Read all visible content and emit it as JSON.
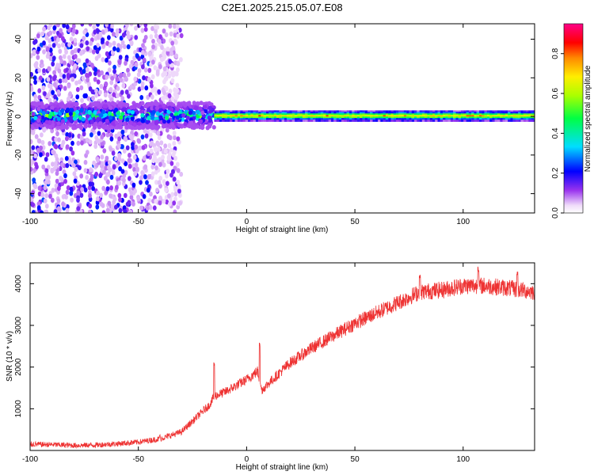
{
  "title": "C2E1.2025.215.05.07.E08",
  "chart_data": [
    {
      "type": "heatmap",
      "xlabel": "Height of straight line (km)",
      "ylabel": "Frequency (Hz)",
      "xlim": [
        -100,
        133
      ],
      "ylim": [
        -50,
        48
      ],
      "xticks": [
        -100,
        -50,
        0,
        50,
        100
      ],
      "yticks": [
        -40,
        -20,
        0,
        20,
        40
      ],
      "colorbar": {
        "label": "Normalized spectral amplitude",
        "range": [
          0,
          0.95
        ],
        "ticks": [
          0.0,
          0.2,
          0.4,
          0.6,
          0.8
        ],
        "tick_labels": [
          "0.0",
          "0.2",
          "0.4",
          "0.6",
          "0.8"
        ],
        "colormap": "rainbow (white, violet, blue, cyan, green, yellow, orange, red, magenta)"
      },
      "features": [
        {
          "description": "broadband scattered noise",
          "x_range": [
            -100,
            -30
          ],
          "y_range": [
            -50,
            48
          ],
          "amplitude": [
            0.05,
            0.25
          ]
        },
        {
          "description": "concentrated carrier band near 0 Hz",
          "x_range": [
            -100,
            -15
          ],
          "y_range": [
            -6,
            7
          ],
          "amplitude": [
            0.1,
            0.6
          ]
        },
        {
          "description": "narrow carrier line",
          "x_range": [
            -15,
            133
          ],
          "y_range": [
            -2,
            3
          ],
          "amplitude": [
            0.4,
            0.85
          ]
        }
      ]
    },
    {
      "type": "line",
      "xlabel": "Height of straight line (km)",
      "ylabel": "SNR (10 * v/v)",
      "xlim": [
        -100,
        133
      ],
      "ylim": [
        0,
        4500
      ],
      "xticks": [
        -100,
        -50,
        0,
        50,
        100
      ],
      "yticks": [
        1000,
        2000,
        3000,
        4000
      ],
      "grid": false,
      "series": [
        {
          "color": "#ee3333",
          "points": [
            [
              -100,
              150
            ],
            [
              -90,
              140
            ],
            [
              -80,
              120
            ],
            [
              -70,
              130
            ],
            [
              -60,
              160
            ],
            [
              -50,
              200
            ],
            [
              -40,
              280
            ],
            [
              -35,
              360
            ],
            [
              -30,
              450
            ],
            [
              -25,
              700
            ],
            [
              -20,
              950
            ],
            [
              -17,
              1100
            ],
            [
              -15,
              1300
            ],
            [
              -10,
              1400
            ],
            [
              -5,
              1550
            ],
            [
              0,
              1700
            ],
            [
              5,
              1900
            ],
            [
              7,
              1450
            ],
            [
              10,
              1600
            ],
            [
              20,
              2100
            ],
            [
              30,
              2450
            ],
            [
              40,
              2750
            ],
            [
              50,
              3050
            ],
            [
              60,
              3300
            ],
            [
              70,
              3550
            ],
            [
              80,
              3800
            ],
            [
              90,
              3850
            ],
            [
              100,
              3950
            ],
            [
              110,
              3950
            ],
            [
              120,
              3900
            ],
            [
              133,
              3800
            ]
          ],
          "spikes": [
            [
              -40,
              400
            ],
            [
              -15,
              2150
            ],
            [
              6,
              2600
            ],
            [
              80,
              4250
            ],
            [
              107,
              4400
            ],
            [
              125,
              4300
            ]
          ],
          "noise_amplitude": 150
        }
      ]
    }
  ]
}
